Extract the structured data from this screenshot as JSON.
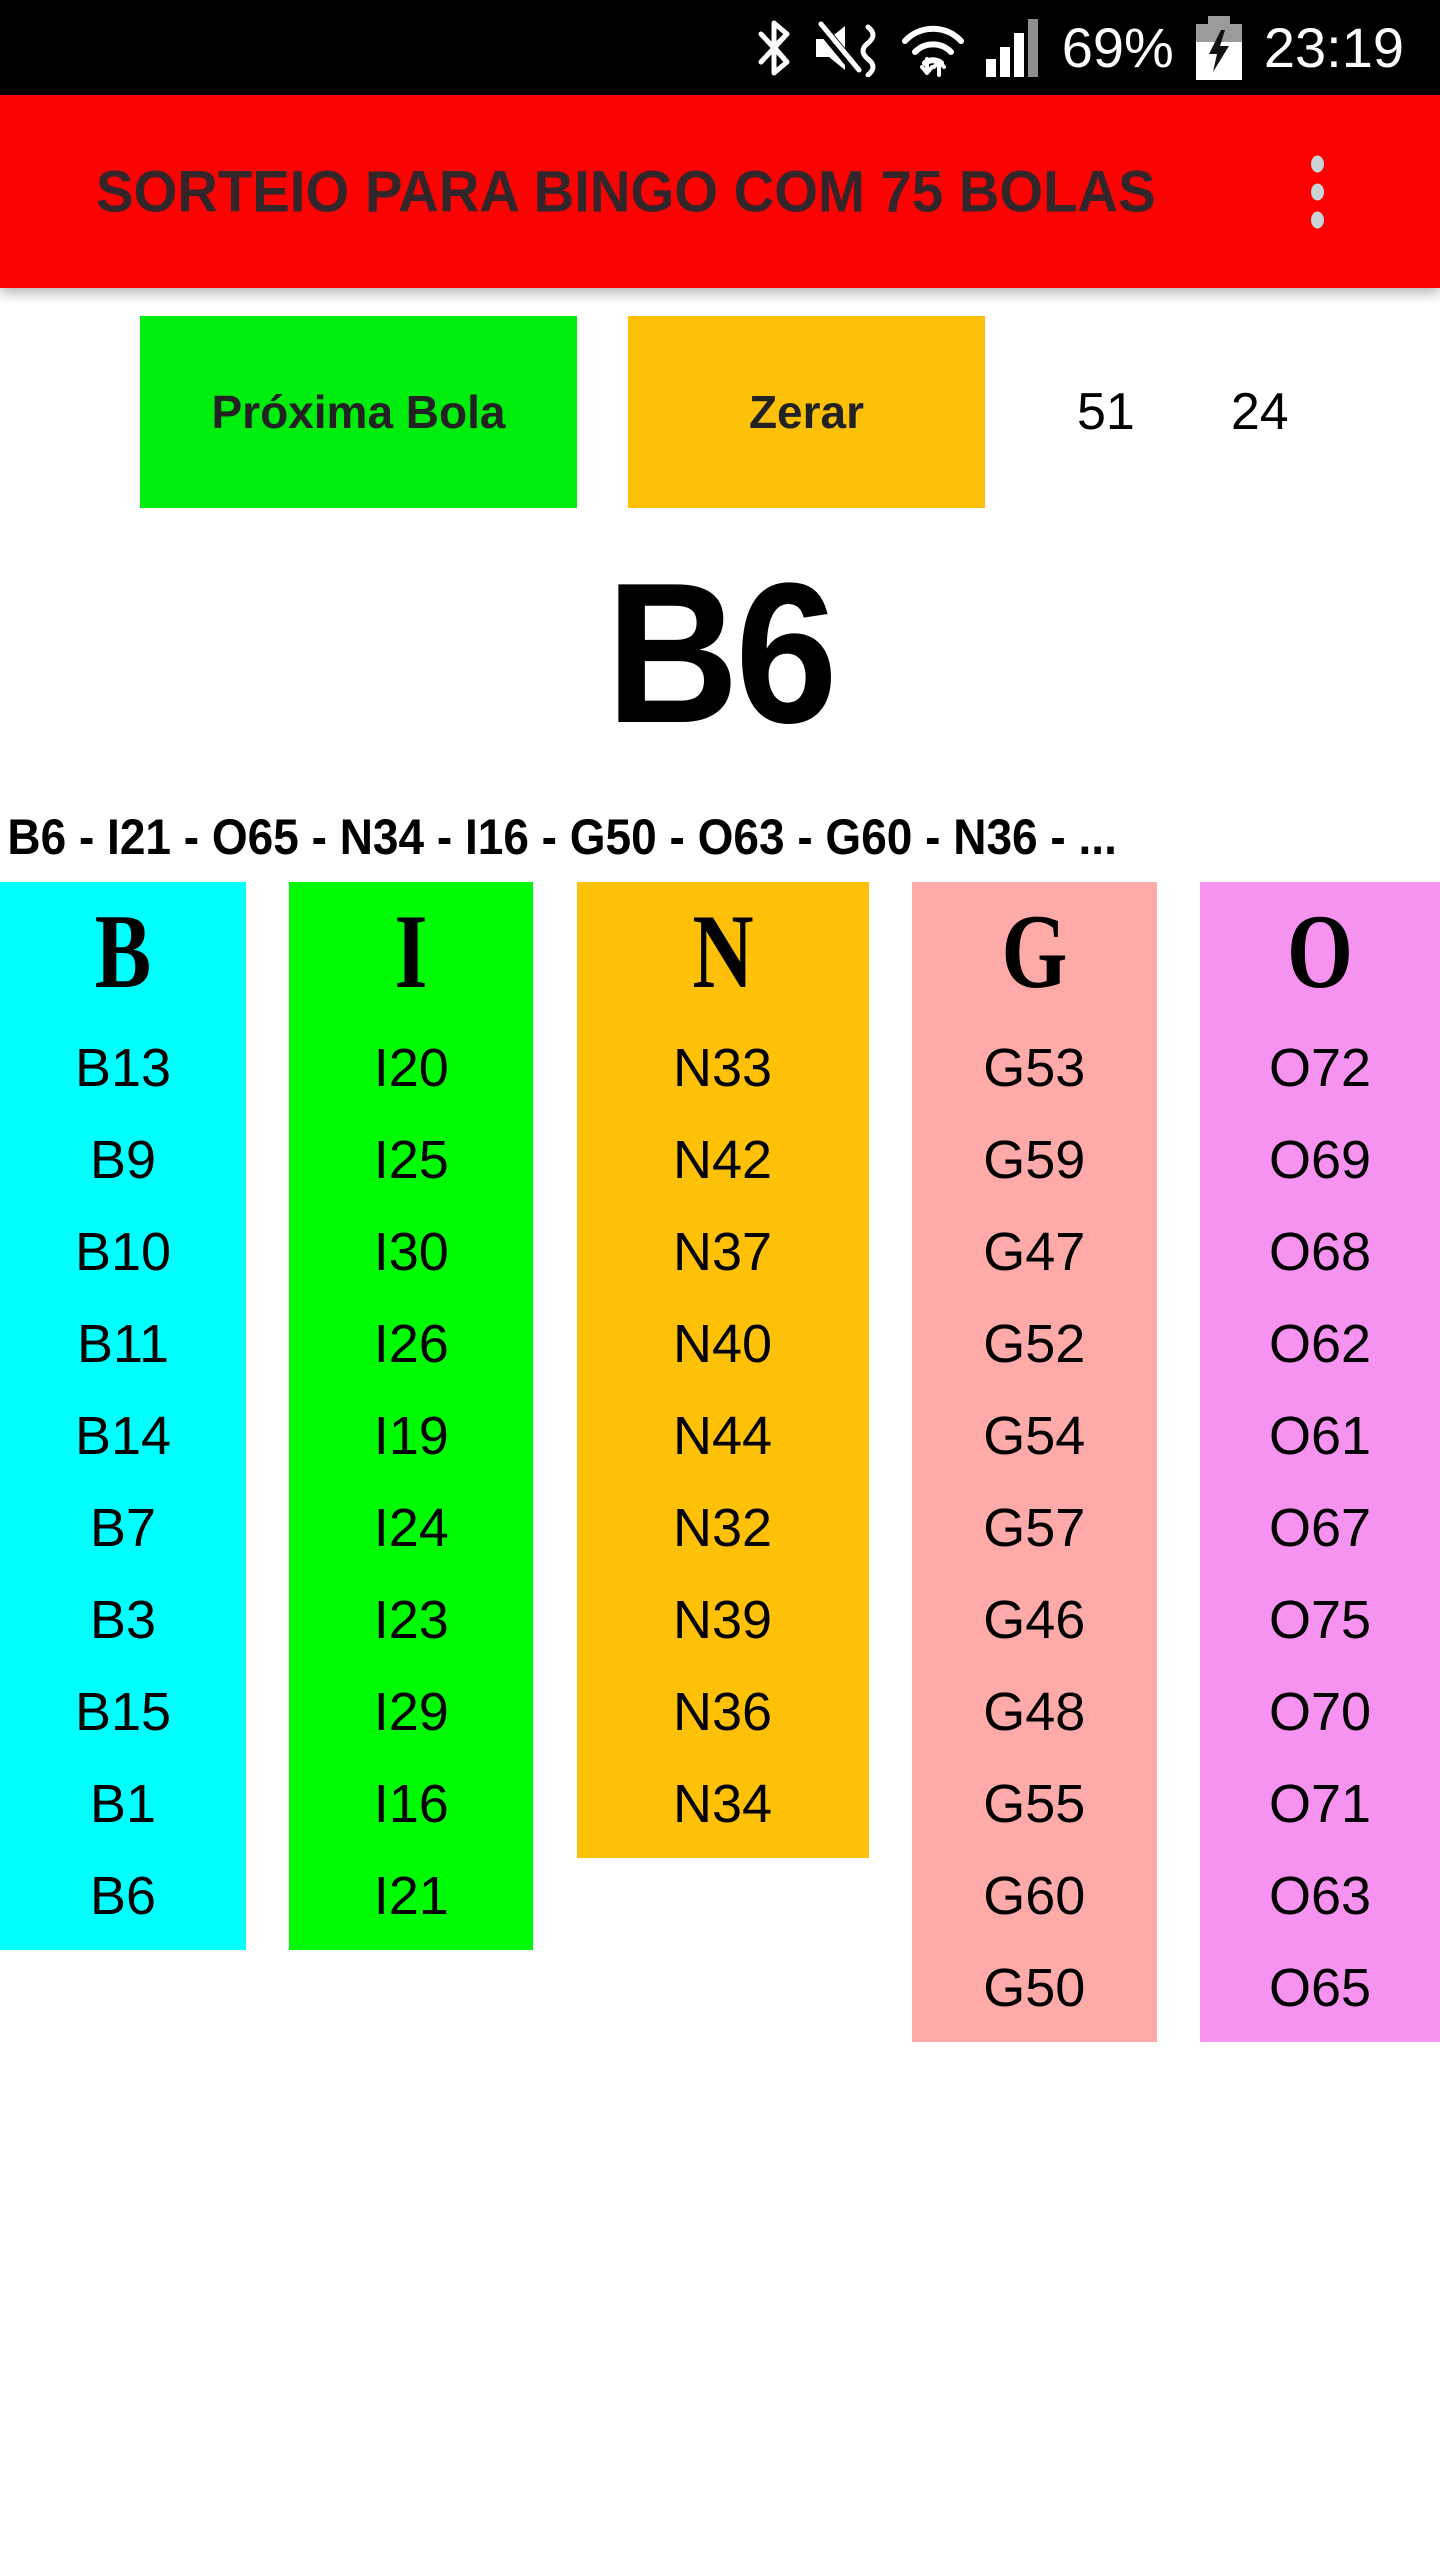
{
  "status_bar": {
    "time": "23:19",
    "battery_percent": "69%",
    "icons": [
      "bluetooth-icon",
      "volume-mute-icon",
      "wifi-icon",
      "signal-icon",
      "battery-charging-icon"
    ]
  },
  "app_bar": {
    "title": "SORTEIO PARA BINGO COM 75 BOLAS",
    "color": "#FB0303",
    "menu_icon": "overflow-menu-icon"
  },
  "controls": {
    "next_ball_label": "Próxima Bola",
    "next_ball_color": "#00EE0D",
    "reset_label": "Zerar",
    "reset_color": "#FFC107",
    "drawn_count": "51",
    "remaining_count": "24"
  },
  "current_ball": "B6",
  "history": "B6 - I21 - O65 - N34 - I16 - G50 - O63 - G60 - N36 - ...",
  "columns": [
    {
      "letter": "B",
      "color": "#00FFFF",
      "values": [
        "B13",
        "B9",
        "B10",
        "B11",
        "B14",
        "B7",
        "B3",
        "B15",
        "B1",
        "B6"
      ]
    },
    {
      "letter": "I",
      "color": "#00FC05",
      "values": [
        "I20",
        "I25",
        "I30",
        "I26",
        "I19",
        "I24",
        "I23",
        "I29",
        "I16",
        "I21"
      ]
    },
    {
      "letter": "N",
      "color": "#FFC107",
      "values": [
        "N33",
        "N42",
        "N37",
        "N40",
        "N44",
        "N32",
        "N39",
        "N36",
        "N34"
      ]
    },
    {
      "letter": "G",
      "color": "#FDAAA8",
      "values": [
        "G53",
        "G59",
        "G47",
        "G52",
        "G54",
        "G57",
        "G46",
        "G48",
        "G55",
        "G60",
        "G50"
      ]
    },
    {
      "letter": "O",
      "color": "#F693F1",
      "values": [
        "O72",
        "O69",
        "O68",
        "O62",
        "O61",
        "O67",
        "O75",
        "O70",
        "O71",
        "O63",
        "O65"
      ]
    }
  ]
}
